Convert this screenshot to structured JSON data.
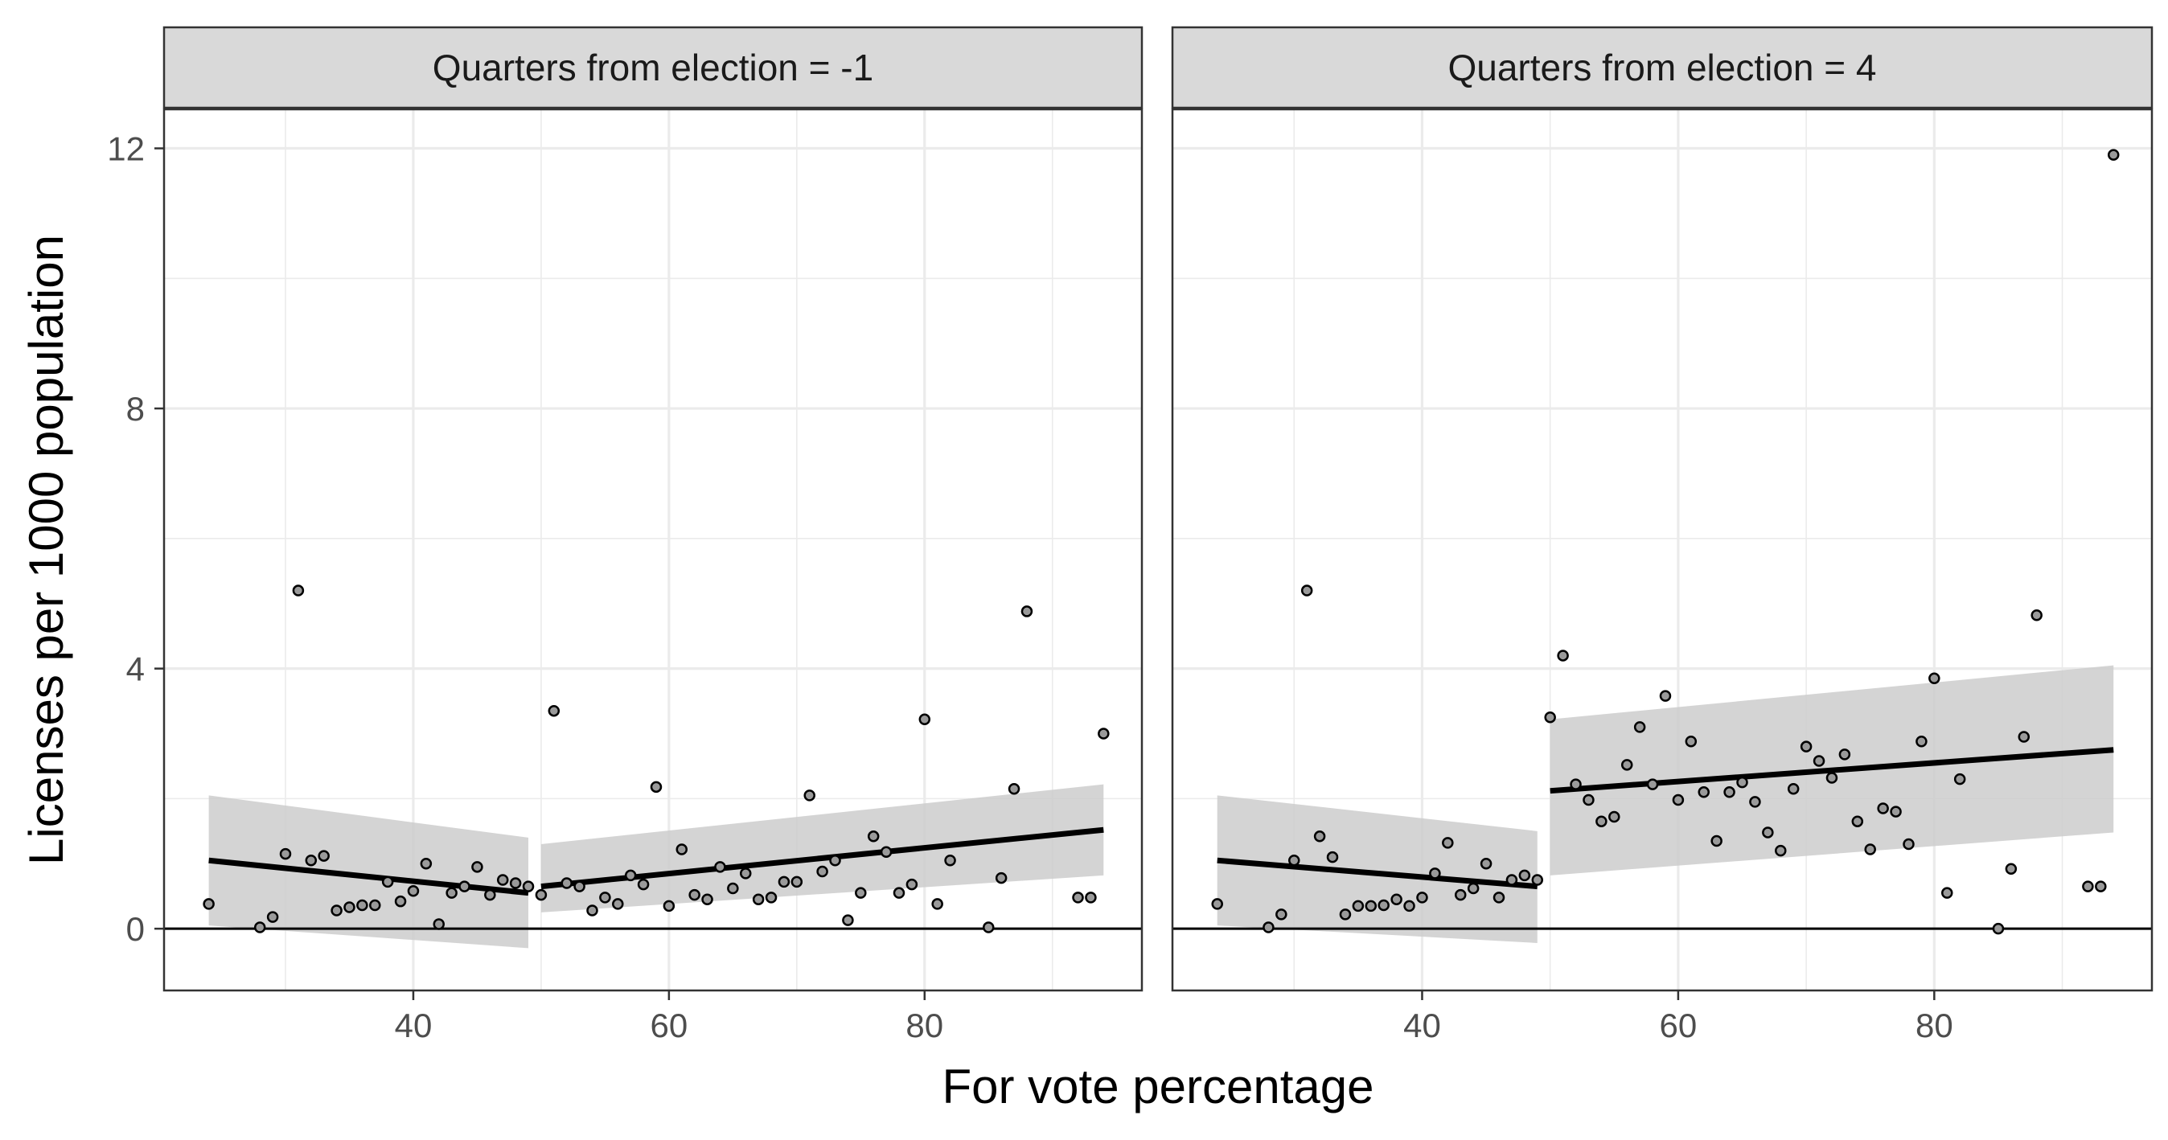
{
  "chart_data": {
    "type": "scatter",
    "xlabel": "For vote percentage",
    "ylabel": "Licenses per 1000 population",
    "xlim": [
      20.5,
      97
    ],
    "ylim": [
      -0.95,
      12.6
    ],
    "x_ticks": [
      40,
      60,
      80
    ],
    "y_ticks": [
      0,
      4,
      8,
      12
    ],
    "grid": true,
    "hline": 0,
    "colors": {
      "strip_fill": "#d9d9d9",
      "panel_border": "#333333",
      "grid_major": "#ebebeb",
      "ribbon": "#cccccc",
      "line": "#000000",
      "point_fill": "#9a9a9a",
      "point_stroke": "#000000"
    },
    "panels": [
      {
        "strip": "Quarters from election = -1",
        "points": [
          [
            24,
            0.38
          ],
          [
            28,
            0.02
          ],
          [
            29,
            0.18
          ],
          [
            30,
            1.15
          ],
          [
            31,
            5.2
          ],
          [
            32,
            1.05
          ],
          [
            33,
            1.12
          ],
          [
            34,
            0.28
          ],
          [
            35,
            0.33
          ],
          [
            36,
            0.36
          ],
          [
            37,
            0.36
          ],
          [
            38,
            0.72
          ],
          [
            39,
            0.42
          ],
          [
            40,
            0.58
          ],
          [
            41,
            1.0
          ],
          [
            42,
            0.07
          ],
          [
            43,
            0.55
          ],
          [
            44,
            0.65
          ],
          [
            45,
            0.95
          ],
          [
            46,
            0.52
          ],
          [
            47,
            0.75
          ],
          [
            48,
            0.7
          ],
          [
            49,
            0.65
          ],
          [
            50,
            0.52
          ],
          [
            51,
            3.35
          ],
          [
            52,
            0.7
          ],
          [
            53,
            0.65
          ],
          [
            54,
            0.28
          ],
          [
            55,
            0.48
          ],
          [
            56,
            0.38
          ],
          [
            57,
            0.82
          ],
          [
            58,
            0.68
          ],
          [
            59,
            2.18
          ],
          [
            60,
            0.35
          ],
          [
            61,
            1.22
          ],
          [
            62,
            0.52
          ],
          [
            63,
            0.45
          ],
          [
            64,
            0.95
          ],
          [
            65,
            0.62
          ],
          [
            66,
            0.85
          ],
          [
            67,
            0.45
          ],
          [
            68,
            0.48
          ],
          [
            69,
            0.72
          ],
          [
            70,
            0.72
          ],
          [
            71,
            2.05
          ],
          [
            72,
            0.88
          ],
          [
            73,
            1.05
          ],
          [
            74,
            0.13
          ],
          [
            75,
            0.55
          ],
          [
            76,
            1.42
          ],
          [
            77,
            1.18
          ],
          [
            78,
            0.55
          ],
          [
            79,
            0.68
          ],
          [
            80,
            3.22
          ],
          [
            81,
            0.38
          ],
          [
            82,
            1.05
          ],
          [
            85,
            0.02
          ],
          [
            86,
            0.78
          ],
          [
            87,
            2.15
          ],
          [
            88,
            4.88
          ],
          [
            92,
            0.48
          ],
          [
            93,
            0.48
          ],
          [
            94,
            3.0
          ]
        ],
        "fits": [
          {
            "x": [
              24,
              49
            ],
            "y": [
              1.05,
              0.55
            ],
            "lower": [
              0.05,
              -0.3
            ],
            "upper": [
              2.05,
              1.4
            ]
          },
          {
            "x": [
              50,
              94
            ],
            "y": [
              0.65,
              1.52
            ],
            "lower": [
              0.25,
              0.82
            ],
            "upper": [
              1.3,
              2.22
            ]
          }
        ]
      },
      {
        "strip": "Quarters from election = 4",
        "points": [
          [
            24,
            0.38
          ],
          [
            28,
            0.02
          ],
          [
            29,
            0.22
          ],
          [
            30,
            1.05
          ],
          [
            31,
            5.2
          ],
          [
            32,
            1.42
          ],
          [
            33,
            1.1
          ],
          [
            34,
            0.22
          ],
          [
            35,
            0.35
          ],
          [
            36,
            0.35
          ],
          [
            37,
            0.36
          ],
          [
            38,
            0.45
          ],
          [
            39,
            0.35
          ],
          [
            40,
            0.48
          ],
          [
            41,
            0.85
          ],
          [
            42,
            1.32
          ],
          [
            43,
            0.52
          ],
          [
            44,
            0.62
          ],
          [
            45,
            1.0
          ],
          [
            46,
            0.48
          ],
          [
            47,
            0.75
          ],
          [
            48,
            0.82
          ],
          [
            49,
            0.75
          ],
          [
            50,
            3.25
          ],
          [
            51,
            4.2
          ],
          [
            52,
            2.22
          ],
          [
            53,
            1.98
          ],
          [
            54,
            1.65
          ],
          [
            55,
            1.72
          ],
          [
            56,
            2.52
          ],
          [
            57,
            3.1
          ],
          [
            58,
            2.22
          ],
          [
            59,
            3.58
          ],
          [
            60,
            1.98
          ],
          [
            61,
            2.88
          ],
          [
            62,
            2.1
          ],
          [
            63,
            1.35
          ],
          [
            64,
            2.1
          ],
          [
            65,
            2.25
          ],
          [
            66,
            1.95
          ],
          [
            67,
            1.48
          ],
          [
            68,
            1.2
          ],
          [
            69,
            2.15
          ],
          [
            70,
            2.8
          ],
          [
            71,
            2.58
          ],
          [
            72,
            2.32
          ],
          [
            73,
            2.68
          ],
          [
            74,
            1.65
          ],
          [
            75,
            1.22
          ],
          [
            76,
            1.85
          ],
          [
            77,
            1.8
          ],
          [
            78,
            1.3
          ],
          [
            79,
            2.88
          ],
          [
            80,
            3.85
          ],
          [
            81,
            0.55
          ],
          [
            82,
            2.3
          ],
          [
            85,
            0.0
          ],
          [
            86,
            0.92
          ],
          [
            87,
            2.95
          ],
          [
            88,
            4.82
          ],
          [
            92,
            0.65
          ],
          [
            93,
            0.65
          ],
          [
            94,
            11.9
          ]
        ],
        "fits": [
          {
            "x": [
              24,
              49
            ],
            "y": [
              1.05,
              0.65
            ],
            "lower": [
              0.05,
              -0.22
            ],
            "upper": [
              2.05,
              1.5
            ]
          },
          {
            "x": [
              50,
              94
            ],
            "y": [
              2.12,
              2.75
            ],
            "lower": [
              0.82,
              1.48
            ],
            "upper": [
              3.22,
              4.05
            ]
          }
        ]
      }
    ]
  }
}
